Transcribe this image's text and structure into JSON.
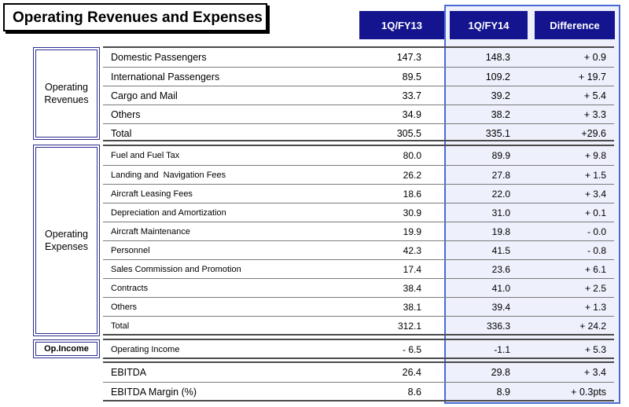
{
  "title": "Operating Revenues and Expenses",
  "columns": [
    "1Q/FY13",
    "1Q/FY14",
    "Difference"
  ],
  "sections": {
    "revenues": {
      "category": "Operating Revenues",
      "rows": [
        {
          "label": "Domestic Passengers",
          "v1": "147.3",
          "v2": "148.3",
          "v3": "+ 0.9"
        },
        {
          "label": "International Passengers",
          "v1": "89.5",
          "v2": "109.2",
          "v3": "+ 19.7"
        },
        {
          "label": "Cargo and Mail",
          "v1": "33.7",
          "v2": "39.2",
          "v3": "+ 5.4"
        },
        {
          "label": "Others",
          "v1": "34.9",
          "v2": "38.2",
          "v3": "+ 3.3"
        },
        {
          "label": "Total",
          "v1": "305.5",
          "v2": "335.1",
          "v3": "+29.6"
        }
      ]
    },
    "expenses": {
      "category": "Operating Expenses",
      "rows": [
        {
          "label": "Fuel and Fuel Tax",
          "v1": "80.0",
          "v2": "89.9",
          "v3": "+ 9.8"
        },
        {
          "label": "Landing and  Navigation Fees",
          "v1": "26.2",
          "v2": "27.8",
          "v3": "+ 1.5"
        },
        {
          "label": "Aircraft Leasing Fees",
          "v1": "18.6",
          "v2": "22.0",
          "v3": "+ 3.4"
        },
        {
          "label": "Depreciation and Amortization",
          "v1": "30.9",
          "v2": "31.0",
          "v3": "+ 0.1"
        },
        {
          "label": "Aircraft Maintenance",
          "v1": "19.9",
          "v2": "19.8",
          "v3": "- 0.0"
        },
        {
          "label": "Personnel",
          "v1": "42.3",
          "v2": "41.5",
          "v3": "- 0.8"
        },
        {
          "label": "Sales Commission and Promotion",
          "v1": "17.4",
          "v2": "23.6",
          "v3": "+ 6.1"
        },
        {
          "label": "Contracts",
          "v1": "38.4",
          "v2": "41.0",
          "v3": "+ 2.5"
        },
        {
          "label": "Others",
          "v1": "38.1",
          "v2": "39.4",
          "v3": "+ 1.3"
        },
        {
          "label": "Total",
          "v1": "312.1",
          "v2": "336.3",
          "v3": "+ 24.2"
        }
      ]
    },
    "income": {
      "category": "Op.Income",
      "row": {
        "label": "Operating Income",
        "v1": "- 6.5",
        "v2": "-1.1",
        "v3": "+ 5.3"
      }
    },
    "ebitda": {
      "rows": [
        {
          "label": "EBITDA",
          "v1": "26.4",
          "v2": "29.8",
          "v3": "+ 3.4"
        },
        {
          "label": "EBITDA Margin (%)",
          "v1": "8.6",
          "v2": "8.9",
          "v3": "+ 0.3pts"
        }
      ]
    }
  }
}
